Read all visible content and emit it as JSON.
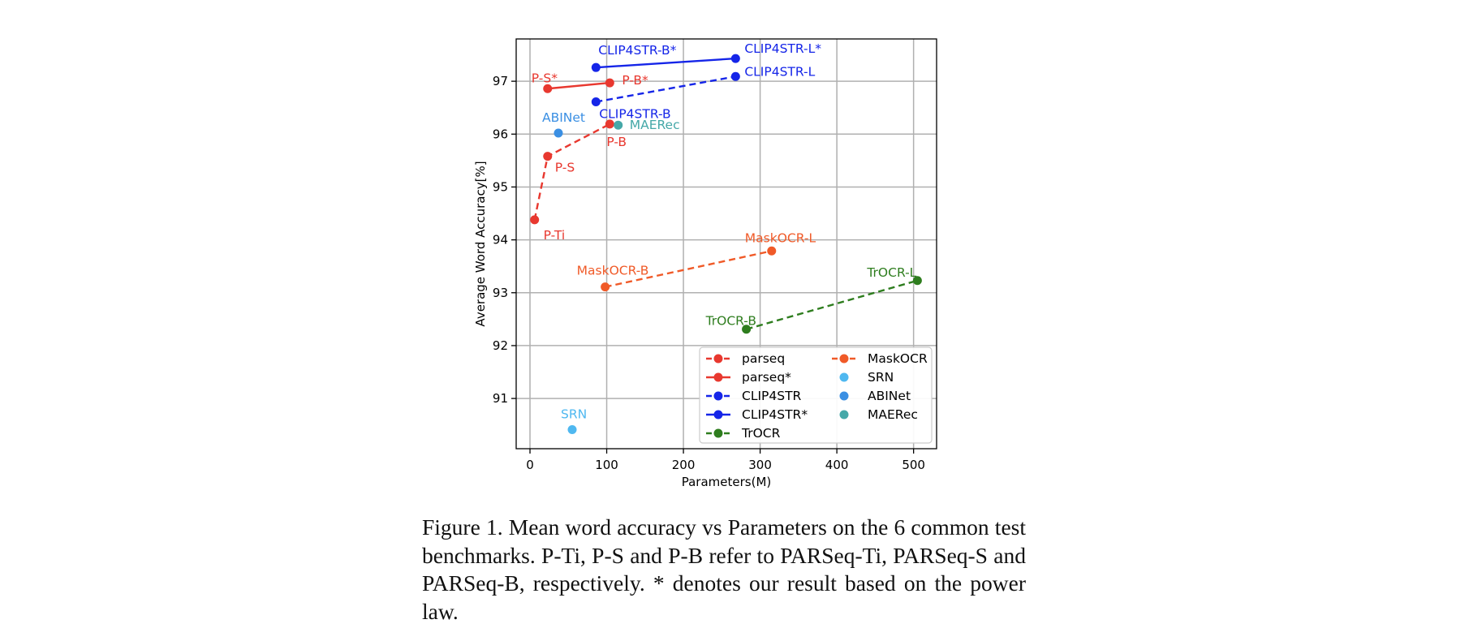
{
  "chart_data": {
    "type": "scatter",
    "xlabel": "Parameters(M)",
    "ylabel": "Average Word Accuracy[%]",
    "xlim": [
      -18,
      530
    ],
    "ylim": [
      90.05,
      97.8
    ],
    "xticks": [
      0,
      100,
      200,
      300,
      400,
      500
    ],
    "yticks": [
      91,
      92,
      93,
      94,
      95,
      96,
      97
    ],
    "grid": true,
    "legend_position": "lower-right",
    "series": [
      {
        "name": "parseq",
        "color": "#e8382f",
        "dashed": true,
        "connected": true,
        "points": [
          {
            "x": 6,
            "y": 94.38,
            "label": "P-Ti"
          },
          {
            "x": 23,
            "y": 95.58,
            "label": "P-S"
          },
          {
            "x": 104,
            "y": 96.19,
            "label": "P-B"
          }
        ]
      },
      {
        "name": "parseq*",
        "color": "#e8382f",
        "dashed": false,
        "connected": true,
        "points": [
          {
            "x": 23,
            "y": 96.86,
            "label": "P-S*"
          },
          {
            "x": 104,
            "y": 96.97,
            "label": "P-B*"
          }
        ]
      },
      {
        "name": "CLIP4STR",
        "color": "#1525e8",
        "dashed": true,
        "connected": true,
        "points": [
          {
            "x": 86,
            "y": 96.61,
            "label": "CLIP4STR-B"
          },
          {
            "x": 268,
            "y": 97.09,
            "label": "CLIP4STR-L"
          }
        ]
      },
      {
        "name": "CLIP4STR*",
        "color": "#1525e8",
        "dashed": false,
        "connected": true,
        "points": [
          {
            "x": 86,
            "y": 97.26,
            "label": "CLIP4STR-B*"
          },
          {
            "x": 268,
            "y": 97.43,
            "label": "CLIP4STR-L*"
          }
        ]
      },
      {
        "name": "TrOCR",
        "color": "#2e7d1e",
        "dashed": true,
        "connected": true,
        "points": [
          {
            "x": 282,
            "y": 92.31,
            "label": "TrOCR-B"
          },
          {
            "x": 505,
            "y": 93.23,
            "label": "TrOCR-L"
          }
        ]
      },
      {
        "name": "MaskOCR",
        "color": "#f05a28",
        "dashed": true,
        "connected": true,
        "points": [
          {
            "x": 98,
            "y": 93.11,
            "label": "MaskOCR-B"
          },
          {
            "x": 315,
            "y": 93.79,
            "label": "MaskOCR-L"
          }
        ]
      },
      {
        "name": "SRN",
        "color": "#4fb8f0",
        "dashed": false,
        "connected": false,
        "points": [
          {
            "x": 55,
            "y": 90.41,
            "label": "SRN"
          }
        ]
      },
      {
        "name": "ABINet",
        "color": "#3a8fe3",
        "dashed": false,
        "connected": false,
        "points": [
          {
            "x": 37,
            "y": 96.02,
            "label": "ABINet"
          }
        ]
      },
      {
        "name": "MAERec",
        "color": "#45a8a8",
        "dashed": false,
        "connected": false,
        "points": [
          {
            "x": 115,
            "y": 96.17,
            "label": "MAERec"
          }
        ]
      }
    ]
  },
  "caption": "Figure 1. Mean word accuracy vs Parameters on the 6 common test benchmarks. P-Ti, P-S and P-B refer to PARSeq-Ti, PARSeq-S and PARSeq-B, respectively. * denotes our result based on the power law."
}
